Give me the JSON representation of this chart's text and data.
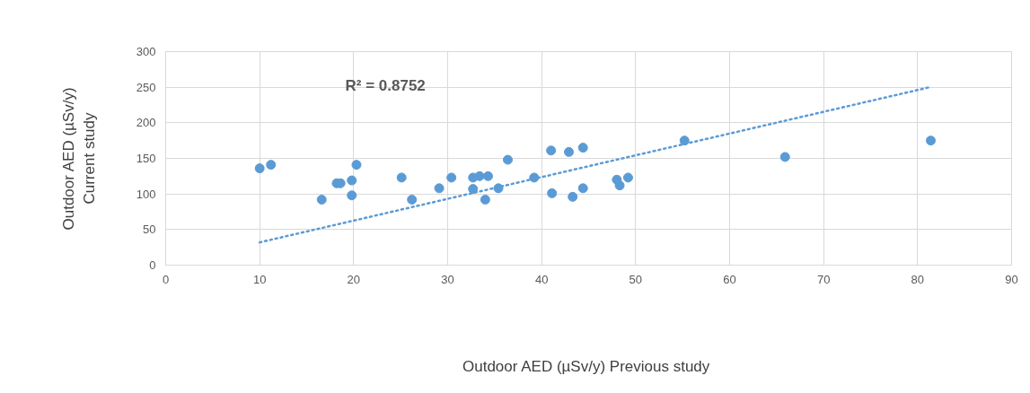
{
  "chart_data": {
    "type": "scatter",
    "xlabel": "Outdoor AED (µSv/y)  Previous study",
    "ylabel": "Outdoor AED (µSv/y)\nCurrent study",
    "xlim": [
      0,
      90
    ],
    "xticks": [
      0,
      10,
      20,
      30,
      40,
      50,
      60,
      70,
      80,
      90
    ],
    "ylim": [
      0,
      300
    ],
    "yticks": [
      0,
      50,
      100,
      150,
      200,
      250,
      300
    ],
    "grid": true,
    "marker": "circle",
    "series": [
      {
        "color": "#5b9bd5",
        "x": [
          10.0,
          11.2,
          16.6,
          18.2,
          18.6,
          19.8,
          19.8,
          20.3,
          25.1,
          26.2,
          29.1,
          30.4,
          32.7,
          32.7,
          33.4,
          34.3,
          34.0,
          35.4,
          36.4,
          39.2,
          41.0,
          41.1,
          42.9,
          43.3,
          44.4,
          44.4,
          48.0,
          48.3,
          49.2,
          55.2,
          65.9,
          81.4
        ],
        "values": [
          136,
          141,
          92,
          115,
          115,
          119,
          98,
          141,
          123,
          92,
          108,
          123,
          123,
          107,
          125,
          125,
          92,
          108,
          148,
          123,
          161,
          101,
          159,
          96,
          165,
          108,
          120,
          112,
          123,
          175,
          152,
          175
        ]
      },
      {
        "type": "line",
        "line_style": "dotted",
        "marker": "none",
        "color": "#5b9bd5",
        "x": [
          10.0,
          81.3
        ],
        "values": [
          32,
          250
        ]
      }
    ],
    "annotations": [
      "R² = 0.8752"
    ]
  }
}
